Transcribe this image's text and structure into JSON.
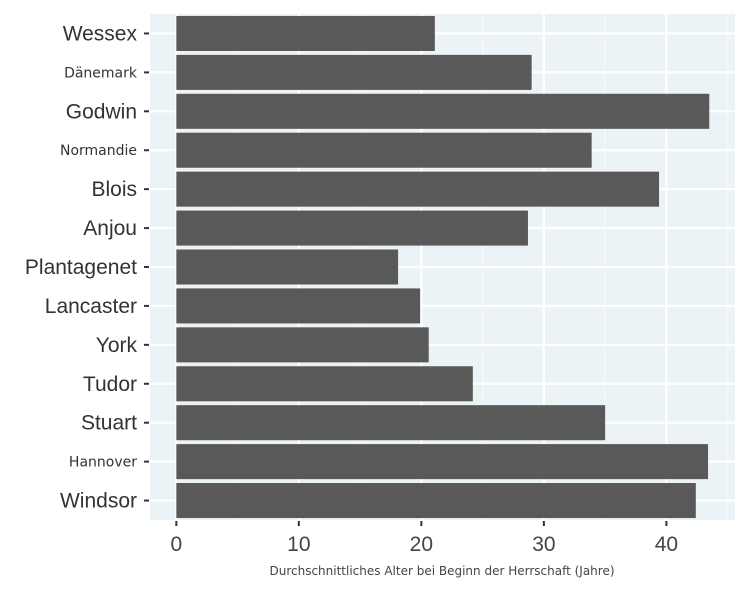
{
  "chart_data": {
    "type": "bar",
    "orientation": "horizontal",
    "categories": [
      "Wessex",
      "Dänemark",
      "Godwin",
      "Normandie",
      "Blois",
      "Anjou",
      "Plantagenet",
      "Lancaster",
      "York",
      "Tudor",
      "Stuart",
      "Hannover",
      "Windsor"
    ],
    "small_label_categories": [
      "Dänemark",
      "Normandie",
      "Hannover"
    ],
    "values": [
      21.1,
      29.0,
      43.5,
      33.9,
      39.4,
      28.7,
      18.1,
      19.9,
      20.6,
      24.2,
      35.0,
      43.4,
      42.4
    ],
    "xlabel": "Durchschnittliches Alter bei Beginn der Herrschaft (Jahre)",
    "ylabel": "",
    "xlim": [
      -2.15,
      45.6
    ],
    "xticks": [
      0,
      10,
      20,
      30,
      40
    ],
    "grid": true,
    "colors": {
      "bar": "#595959",
      "panel": "#ebf3f6",
      "grid_major": "#ffffff",
      "grid_minor": "#f5f9fb",
      "text": "#333333"
    }
  }
}
